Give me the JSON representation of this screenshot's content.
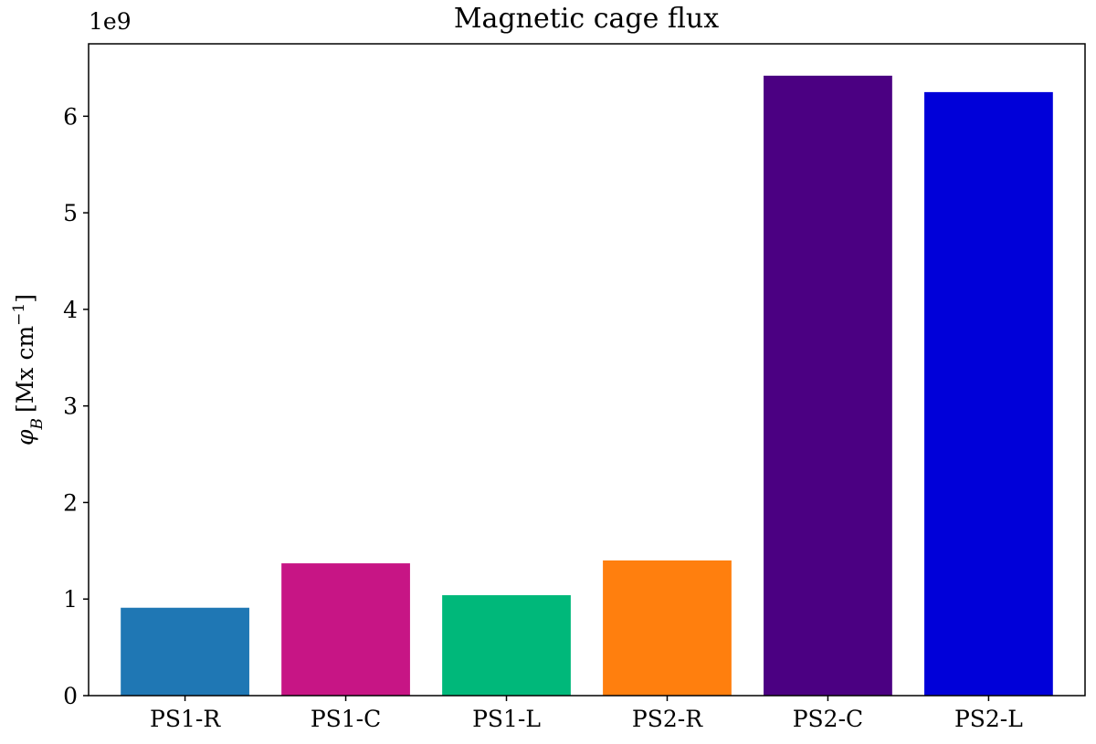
{
  "chart_data": {
    "type": "bar",
    "title": "Magnetic cage flux",
    "ylabel_symbol": "φ",
    "ylabel_subscript": "B",
    "ylabel_units": "[Mx cm",
    "ylabel_exponent": "−1",
    "ylabel_close": "]",
    "y_offset_label": "1e9",
    "categories": [
      "PS1-R",
      "PS1-C",
      "PS1-L",
      "PS2-R",
      "PS2-C",
      "PS2-L"
    ],
    "values": [
      0.91,
      1.37,
      1.04,
      1.4,
      6.42,
      6.25
    ],
    "colors": [
      "#1f77b4",
      "#c71585",
      "#00b87a",
      "#ff7f0e",
      "#4b0082",
      "#0000d9"
    ],
    "ylim": [
      0,
      6.75
    ],
    "yticks": [
      0,
      1,
      2,
      3,
      4,
      5,
      6
    ],
    "grid": false
  }
}
